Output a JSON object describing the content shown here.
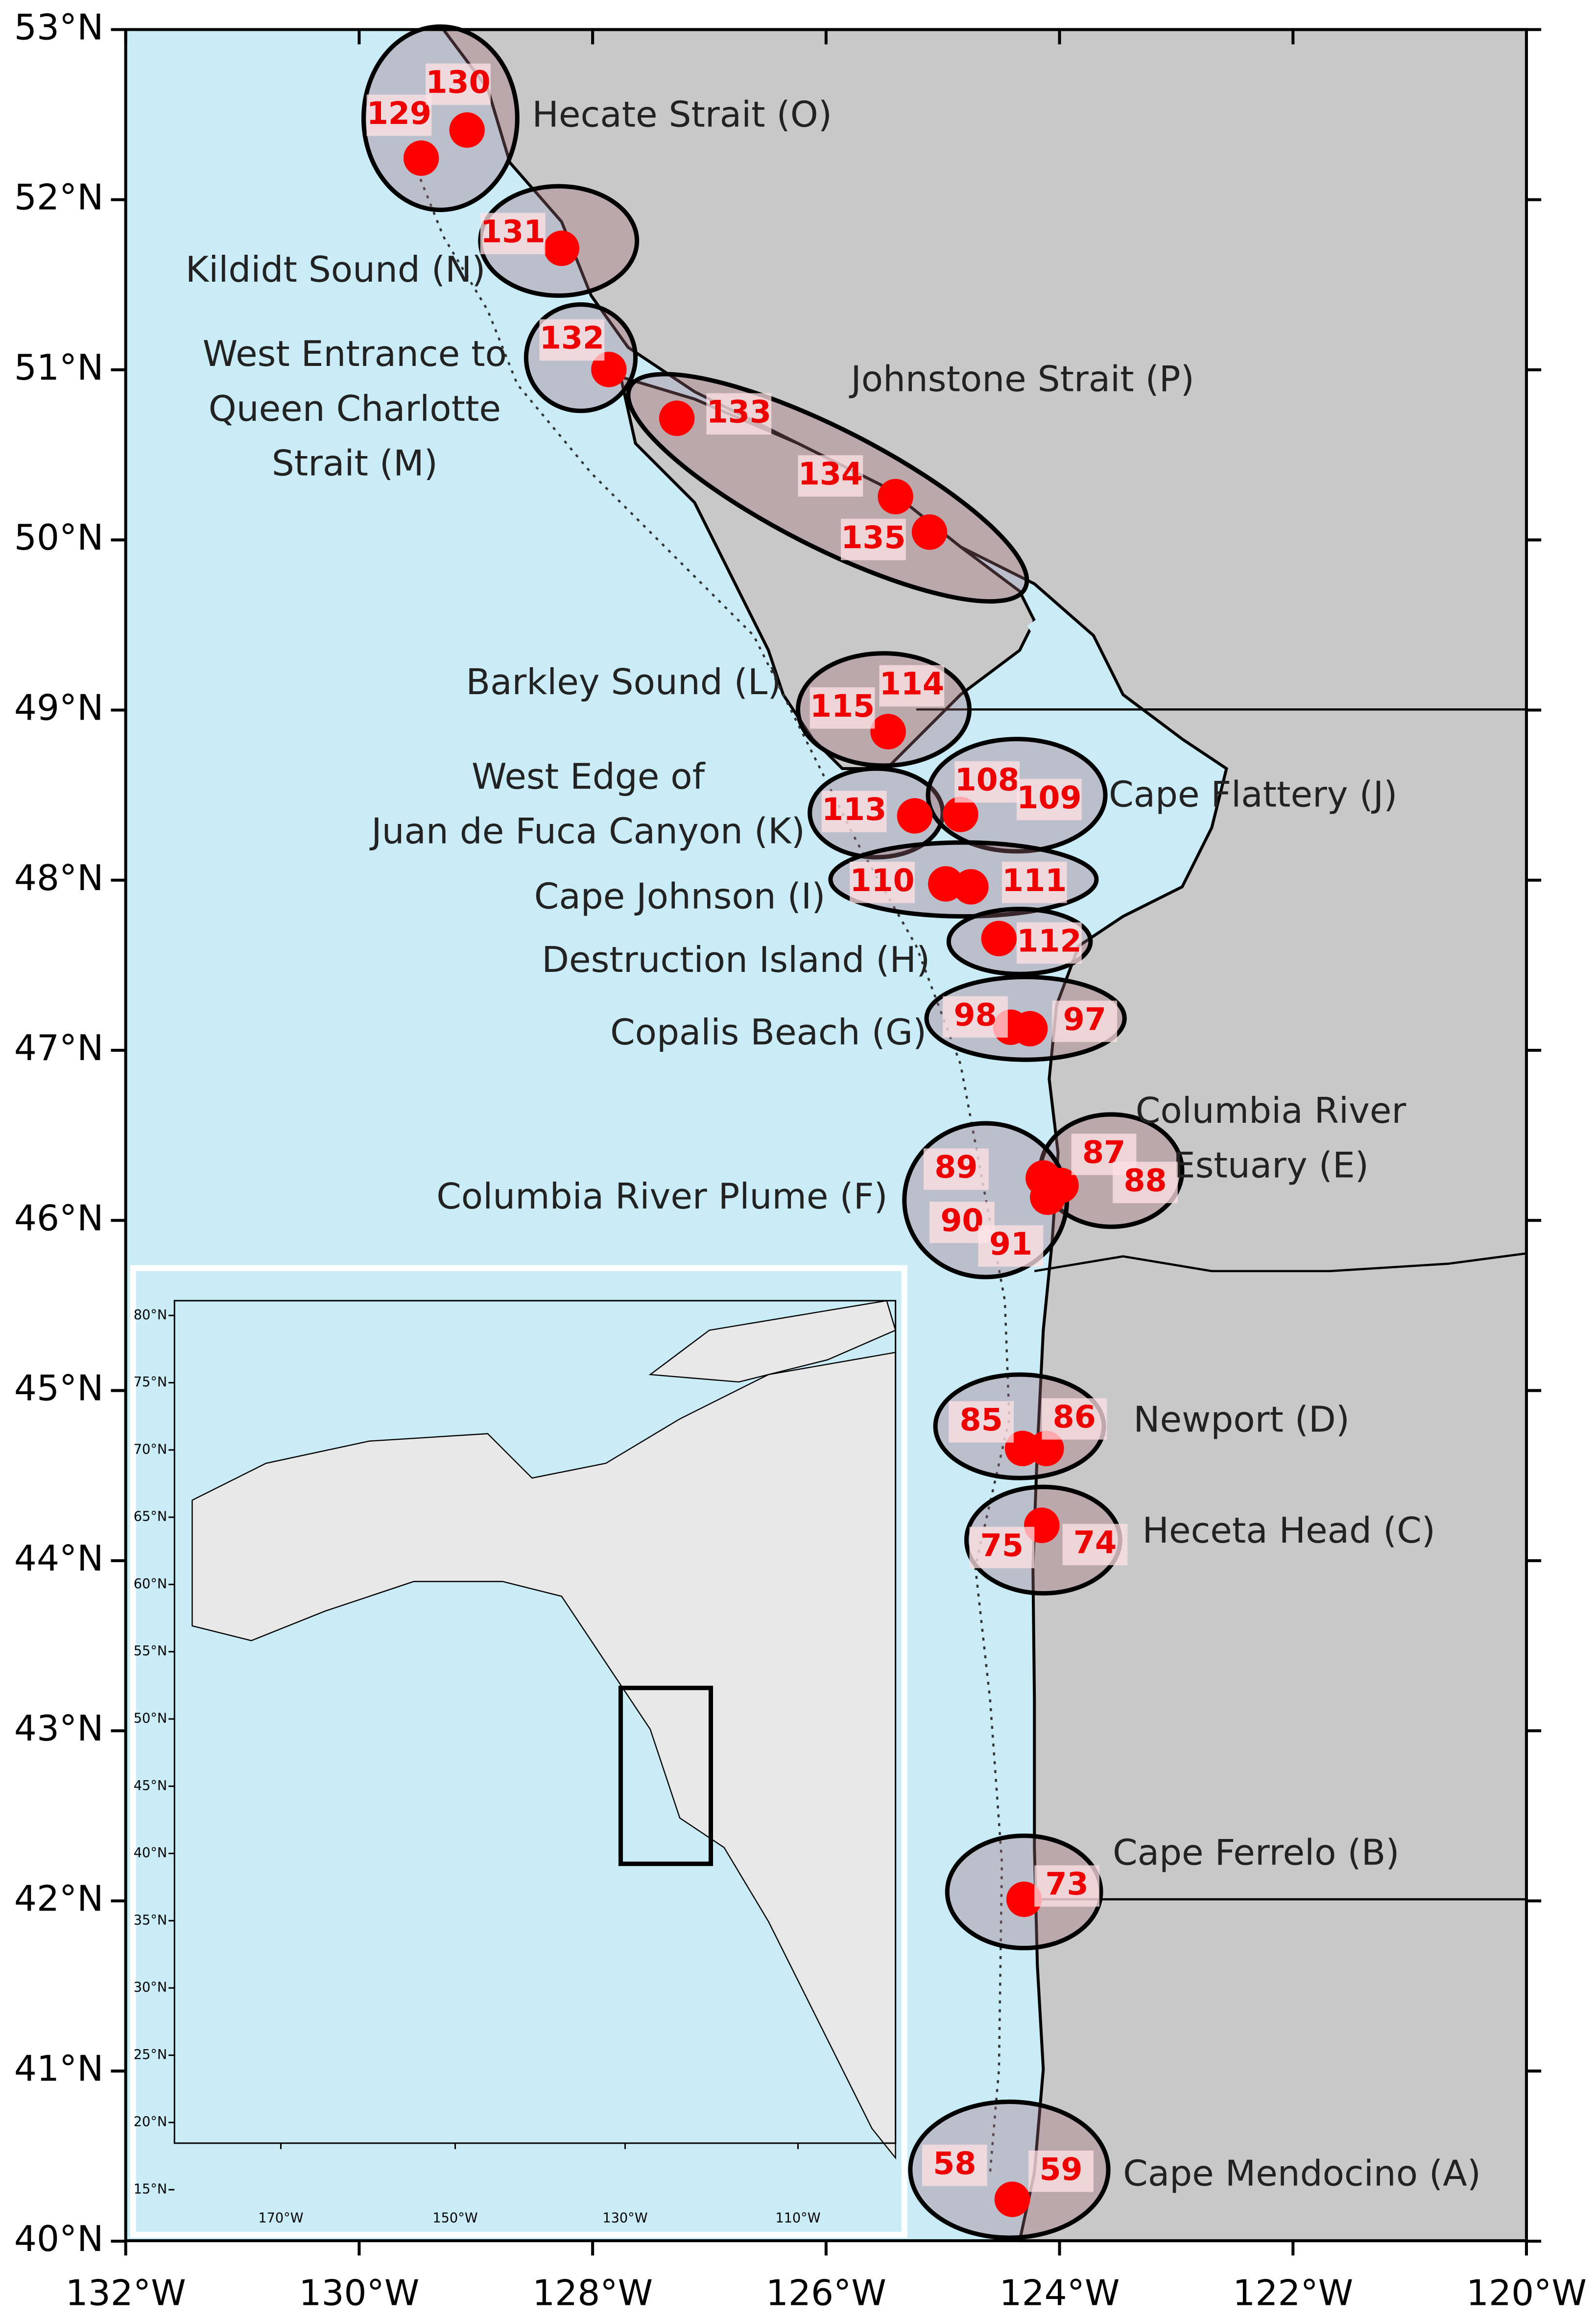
{
  "map": {
    "x_ticks": [
      "132°W",
      "130°W",
      "128°W",
      "126°W",
      "124°W",
      "122°W",
      "120°W"
    ],
    "y_ticks": [
      "53°N",
      "52°N",
      "51°N",
      "50°N",
      "49°N",
      "48°N",
      "47°N",
      "46°N",
      "45°N",
      "44°N",
      "43°N",
      "42°N",
      "41°N",
      "40°N"
    ],
    "regions": [
      {
        "label": [
          "Hecate Strait (O)"
        ],
        "stations": [
          129,
          130
        ]
      },
      {
        "label": [
          "Kildidt Sound (N)"
        ],
        "stations": [
          131
        ]
      },
      {
        "label": [
          "West Entrance to",
          "Queen Charlotte",
          "Strait (M)"
        ],
        "stations": [
          132
        ]
      },
      {
        "label": [
          "Johnstone Strait (P)"
        ],
        "stations": [
          133,
          134,
          135
        ]
      },
      {
        "label": [
          "Barkley Sound (L)"
        ],
        "stations": [
          114,
          115
        ]
      },
      {
        "label": [
          "West Edge of",
          "Juan de Fuca Canyon (K)"
        ],
        "stations": [
          113
        ]
      },
      {
        "label": [
          "Cape Flattery (J)"
        ],
        "stations": [
          108,
          109
        ]
      },
      {
        "label": [
          "Cape Johnson (I)"
        ],
        "stations": [
          110,
          111
        ]
      },
      {
        "label": [
          "Destruction Island (H)"
        ],
        "stations": [
          112
        ]
      },
      {
        "label": [
          "Copalis Beach (G)"
        ],
        "stations": [
          98,
          97
        ]
      },
      {
        "label": [
          "Columbia River",
          "Estuary (E)"
        ],
        "stations": [
          87,
          88
        ]
      },
      {
        "label": [
          "Columbia River Plume (F)"
        ],
        "stations": [
          89,
          90,
          91
        ]
      },
      {
        "label": [
          "Newport (D)"
        ],
        "stations": [
          85,
          86
        ]
      },
      {
        "label": [
          "Heceta Head (C)"
        ],
        "stations": [
          75,
          74
        ]
      },
      {
        "label": [
          "Cape Ferrelo (B)"
        ],
        "stations": [
          73
        ]
      },
      {
        "label": [
          "Cape Mendocino (A)"
        ],
        "stations": [
          58,
          59
        ]
      }
    ],
    "inset": {
      "x_ticks": [
        "170°W",
        "150°W",
        "130°W",
        "110°W"
      ],
      "y_ticks": [
        "80°N",
        "75°N",
        "70°N",
        "65°N",
        "60°N",
        "55°N",
        "50°N",
        "45°N",
        "40°N",
        "35°N",
        "30°N",
        "25°N",
        "20°N",
        "15°N"
      ]
    }
  }
}
